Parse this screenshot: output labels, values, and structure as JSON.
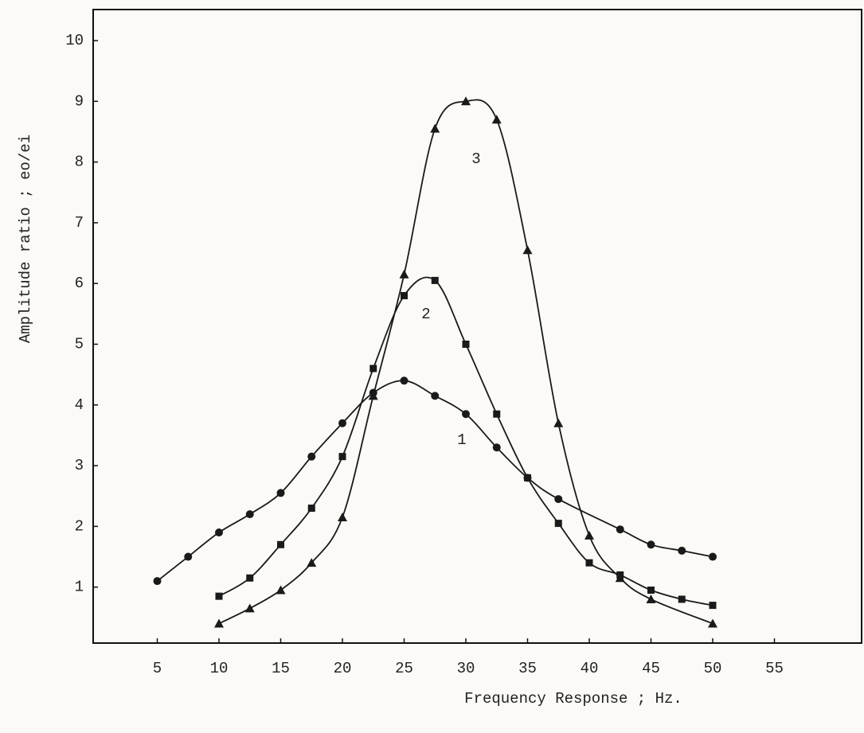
{
  "chart_data": {
    "type": "line",
    "xlabel": "Frequency Response ; Hz.",
    "ylabel": "Amplitude ratio ; eo/ei",
    "xlim": [
      0,
      62
    ],
    "ylim": [
      0,
      10.5
    ],
    "xticks": [
      5,
      10,
      15,
      20,
      25,
      30,
      35,
      40,
      45,
      50,
      55
    ],
    "yticks": [
      1,
      2,
      3,
      4,
      5,
      6,
      7,
      8,
      9,
      10
    ],
    "color": "#1a1a1a",
    "series": [
      {
        "name": "1",
        "marker": "circle",
        "x": [
          5,
          7.5,
          10,
          12.5,
          15,
          17.5,
          20,
          22.5,
          25,
          27.5,
          30,
          32.5,
          35,
          37.5,
          42.5,
          45,
          47.5,
          50
        ],
        "values": [
          1.1,
          1.5,
          1.9,
          2.2,
          2.55,
          3.15,
          3.7,
          4.2,
          4.4,
          4.15,
          3.85,
          3.3,
          2.8,
          2.45,
          1.95,
          1.7,
          1.6,
          1.5
        ]
      },
      {
        "name": "2",
        "marker": "square",
        "x": [
          10,
          12.5,
          15,
          17.5,
          20,
          22.5,
          25,
          27.5,
          30,
          32.5,
          35,
          37.5,
          40,
          42.5,
          45,
          47.5,
          50
        ],
        "values": [
          0.85,
          1.15,
          1.7,
          2.3,
          3.15,
          4.6,
          5.8,
          6.05,
          5.0,
          3.85,
          2.8,
          2.05,
          1.4,
          1.2,
          0.95,
          0.8,
          0.7
        ]
      },
      {
        "name": "3",
        "marker": "triangle",
        "x": [
          10,
          12.5,
          15,
          17.5,
          20,
          22.5,
          25,
          27.5,
          30,
          32.5,
          35,
          37.5,
          40,
          42.5,
          45,
          50
        ],
        "values": [
          0.4,
          0.65,
          0.95,
          1.4,
          2.15,
          4.15,
          6.15,
          8.55,
          9.0,
          8.7,
          6.55,
          3.7,
          1.85,
          1.15,
          0.8,
          0.4
        ]
      }
    ]
  }
}
